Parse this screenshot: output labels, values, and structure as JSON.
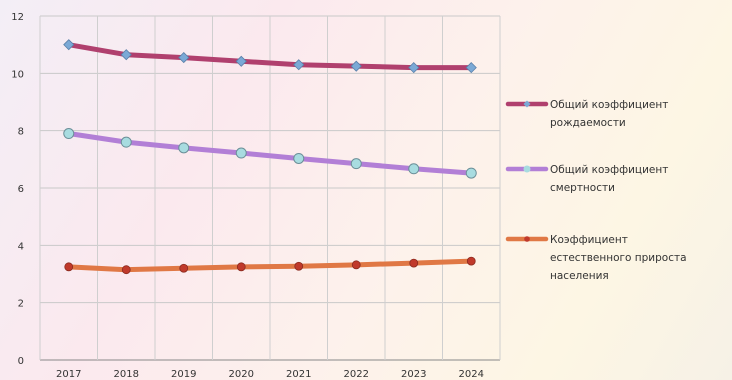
{
  "chart_data": {
    "type": "line",
    "categories": [
      "2017",
      "2018",
      "2019",
      "2020",
      "2021",
      "2022",
      "2023",
      "2024"
    ],
    "ylim": [
      0,
      12
    ],
    "yticks": [
      0,
      2,
      4,
      6,
      8,
      10,
      12
    ],
    "grid": true,
    "legend_position": "right",
    "series": [
      {
        "name": "Общий коэффициент рождаемости",
        "legend_lines": [
          "Общий коэффициент",
          "рождаемости"
        ],
        "color": "#b0406e",
        "marker": "diamond",
        "marker_color": "#7ba9d6",
        "values": [
          11.0,
          10.65,
          10.55,
          10.42,
          10.3,
          10.25,
          10.2,
          10.2
        ]
      },
      {
        "name": "Общий коэффициент смертности",
        "legend_lines": [
          "Общий коэффициент",
          "смертности"
        ],
        "color": "#b27fd6",
        "marker": "circle",
        "marker_color": "#a8dce0",
        "values": [
          7.9,
          7.6,
          7.4,
          7.22,
          7.03,
          6.85,
          6.67,
          6.52
        ]
      },
      {
        "name": "Коэффициент естественного прироста населения",
        "legend_lines": [
          "Коэффициент",
          "естественного прироста",
          "населения"
        ],
        "color": "#e07845",
        "marker": "circle",
        "marker_color": "#c0392b",
        "values": [
          3.25,
          3.15,
          3.2,
          3.25,
          3.27,
          3.32,
          3.38,
          3.45
        ]
      }
    ]
  }
}
